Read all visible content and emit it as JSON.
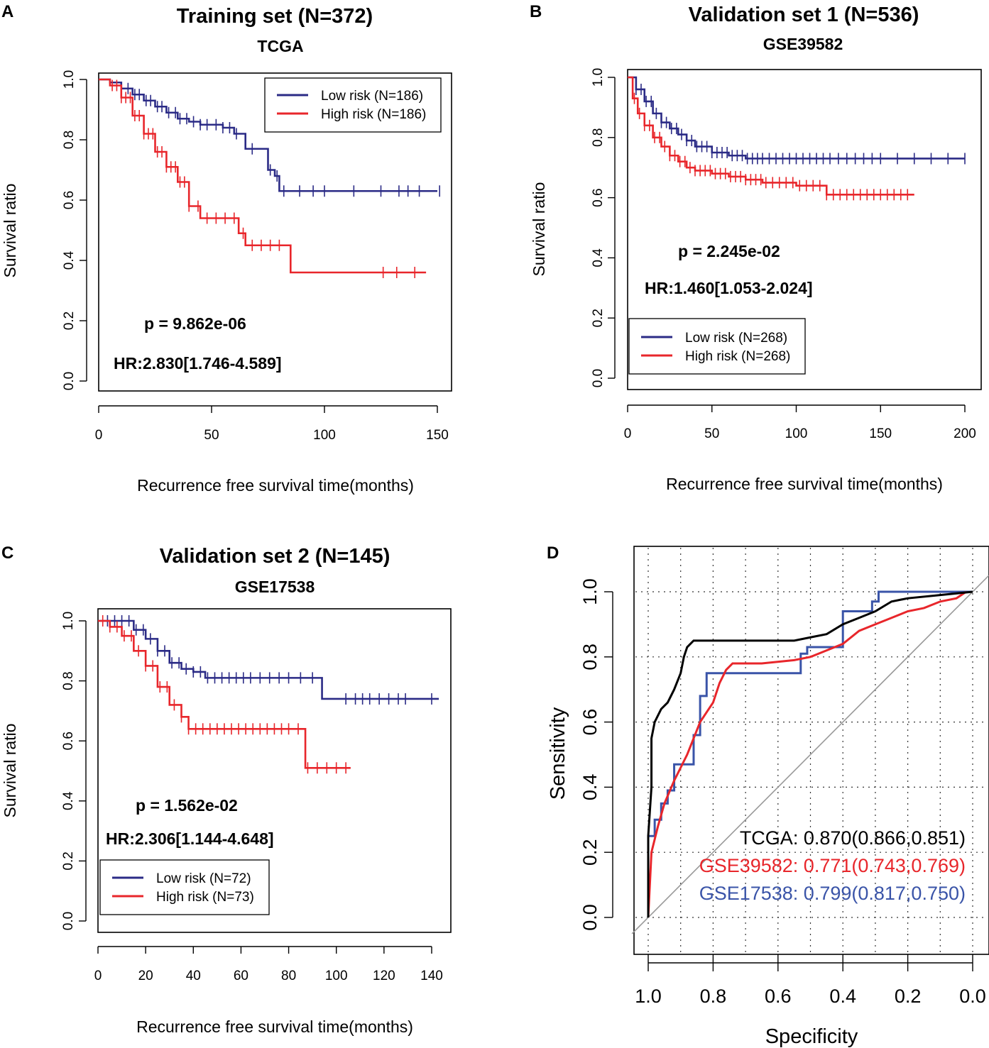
{
  "panels": [
    {
      "letter": "A",
      "type": "survival",
      "title": "Training set  (N=372)",
      "subtitle": "TCGA",
      "xlabel": "Recurrence free survival time(months)",
      "ylabel": "Survival ratio",
      "xlim": [
        0,
        155
      ],
      "ylim": [
        0,
        1.0
      ],
      "xticks": [
        0,
        50,
        100,
        150
      ],
      "yticks": [
        0.0,
        0.2,
        0.4,
        0.6,
        0.8,
        1.0
      ],
      "ytick_labels": [
        "0.0",
        "0.2",
        "0.4",
        "0.6",
        "0.8",
        "1.0"
      ],
      "p_value": "p = 9.862e-06",
      "hr": "HR:2.830[1.746-4.589]",
      "legend_position": "top-right",
      "series": [
        {
          "name": "Low risk (N=186)",
          "color": "#2b2b86",
          "points": [
            [
              0,
              1.0
            ],
            [
              5,
              0.99
            ],
            [
              10,
              0.97
            ],
            [
              15,
              0.95
            ],
            [
              20,
              0.93
            ],
            [
              25,
              0.91
            ],
            [
              30,
              0.89
            ],
            [
              35,
              0.87
            ],
            [
              40,
              0.86
            ],
            [
              45,
              0.85
            ],
            [
              50,
              0.85
            ],
            [
              55,
              0.84
            ],
            [
              60,
              0.82
            ],
            [
              65,
              0.77
            ],
            [
              70,
              0.77
            ],
            [
              75,
              0.7
            ],
            [
              78,
              0.68
            ],
            [
              80,
              0.63
            ],
            [
              150,
              0.63
            ]
          ],
          "censors": [
            10,
            13,
            16,
            18,
            21,
            23,
            26,
            28,
            31,
            34,
            36,
            39,
            42,
            45,
            48,
            52,
            55,
            58,
            61,
            68,
            76,
            79,
            82,
            89,
            95,
            100,
            113,
            125,
            133,
            137,
            142,
            151
          ]
        },
        {
          "name": "High risk (N=186)",
          "color": "#e8262b",
          "points": [
            [
              0,
              1.0
            ],
            [
              5,
              0.98
            ],
            [
              10,
              0.94
            ],
            [
              15,
              0.88
            ],
            [
              20,
              0.82
            ],
            [
              25,
              0.76
            ],
            [
              30,
              0.71
            ],
            [
              35,
              0.66
            ],
            [
              40,
              0.58
            ],
            [
              45,
              0.54
            ],
            [
              50,
              0.54
            ],
            [
              60,
              0.54
            ],
            [
              62,
              0.49
            ],
            [
              65,
              0.45
            ],
            [
              75,
              0.45
            ],
            [
              84,
              0.45
            ],
            [
              85,
              0.36
            ],
            [
              145,
              0.36
            ]
          ],
          "censors": [
            6,
            8,
            10,
            12,
            14,
            16,
            18,
            20,
            22,
            24,
            26,
            28,
            30,
            32,
            34,
            36,
            38,
            40,
            44,
            48,
            52,
            56,
            60,
            64,
            68,
            72,
            76,
            80,
            126,
            132,
            140
          ]
        }
      ]
    },
    {
      "letter": "B",
      "type": "survival",
      "title": "Validation set 1  (N=536)",
      "subtitle": "GSE39582",
      "xlabel": "Recurrence free survival time(months)",
      "ylabel": "Survival ratio",
      "xlim": [
        0,
        205
      ],
      "ylim": [
        0,
        1.0
      ],
      "xticks": [
        0,
        50,
        100,
        150,
        200
      ],
      "yticks": [
        0.0,
        0.2,
        0.4,
        0.6,
        0.8,
        1.0
      ],
      "ytick_labels": [
        "0.0",
        "0.2",
        "0.4",
        "0.6",
        "0.8",
        "1.0"
      ],
      "p_value": "p = 2.245e-02",
      "hr": "HR:1.460[1.053-2.024]",
      "legend_position": "bottom-left",
      "series": [
        {
          "name": "Low risk (N=268)",
          "color": "#2b2b86",
          "points": [
            [
              0,
              1.0
            ],
            [
              5,
              0.96
            ],
            [
              10,
              0.92
            ],
            [
              15,
              0.88
            ],
            [
              20,
              0.85
            ],
            [
              25,
              0.83
            ],
            [
              30,
              0.81
            ],
            [
              35,
              0.79
            ],
            [
              40,
              0.77
            ],
            [
              50,
              0.75
            ],
            [
              60,
              0.74
            ],
            [
              70,
              0.73
            ],
            [
              200,
              0.73
            ]
          ],
          "censors": [
            5,
            8,
            11,
            14,
            17,
            20,
            23,
            26,
            29,
            32,
            35,
            38,
            41,
            44,
            47,
            50,
            53,
            56,
            59,
            62,
            65,
            68,
            71,
            74,
            77,
            80,
            84,
            88,
            92,
            96,
            100,
            104,
            108,
            112,
            116,
            120,
            125,
            130,
            135,
            140,
            145,
            150,
            160,
            170,
            180,
            190,
            200
          ]
        },
        {
          "name": "High risk (N=268)",
          "color": "#e8262b",
          "points": [
            [
              0,
              1.0
            ],
            [
              3,
              0.93
            ],
            [
              6,
              0.88
            ],
            [
              10,
              0.84
            ],
            [
              15,
              0.8
            ],
            [
              20,
              0.77
            ],
            [
              25,
              0.74
            ],
            [
              30,
              0.72
            ],
            [
              35,
              0.7
            ],
            [
              40,
              0.69
            ],
            [
              50,
              0.68
            ],
            [
              60,
              0.67
            ],
            [
              70,
              0.66
            ],
            [
              80,
              0.65
            ],
            [
              100,
              0.64
            ],
            [
              110,
              0.64
            ],
            [
              118,
              0.61
            ],
            [
              170,
              0.61
            ]
          ],
          "censors": [
            4,
            7,
            10,
            13,
            16,
            19,
            22,
            25,
            28,
            31,
            34,
            37,
            40,
            43,
            46,
            49,
            52,
            55,
            58,
            61,
            64,
            67,
            70,
            73,
            76,
            79,
            82,
            86,
            90,
            94,
            98,
            102,
            106,
            110,
            114,
            118,
            122,
            126,
            130,
            134,
            138,
            142,
            146,
            150,
            154,
            158,
            162,
            166
          ]
        }
      ]
    },
    {
      "letter": "C",
      "type": "survival",
      "title": "Validation set 2  (N=145)",
      "subtitle": "GSE17538",
      "xlabel": "Recurrence free survival time(months)",
      "ylabel": "Survival ratio",
      "xlim": [
        0,
        148
      ],
      "ylim": [
        0,
        1.0
      ],
      "xticks": [
        0,
        20,
        40,
        60,
        80,
        100,
        120,
        140
      ],
      "yticks": [
        0.0,
        0.2,
        0.4,
        0.6,
        0.8,
        1.0
      ],
      "ytick_labels": [
        "0.0",
        "0.2",
        "0.4",
        "0.6",
        "0.8",
        "1.0"
      ],
      "p_value": "p = 1.562e-02",
      "hr": "HR:2.306[1.144-4.648]",
      "legend_position": "bottom-left",
      "series": [
        {
          "name": "Low risk (N=72)",
          "color": "#2b2b86",
          "points": [
            [
              0,
              1.0
            ],
            [
              10,
              1.0
            ],
            [
              15,
              0.97
            ],
            [
              20,
              0.94
            ],
            [
              25,
              0.9
            ],
            [
              30,
              0.86
            ],
            [
              35,
              0.84
            ],
            [
              40,
              0.83
            ],
            [
              45,
              0.81
            ],
            [
              92,
              0.81
            ],
            [
              94,
              0.74
            ],
            [
              143,
              0.74
            ]
          ],
          "censors": [
            4,
            7,
            10,
            13,
            16,
            19,
            22,
            25,
            28,
            31,
            34,
            37,
            40,
            43,
            46,
            49,
            52,
            55,
            58,
            61,
            64,
            68,
            72,
            76,
            80,
            85,
            90,
            104,
            108,
            111,
            114,
            118,
            122,
            126,
            129,
            140
          ]
        },
        {
          "name": "High risk (N=73)",
          "color": "#e8262b",
          "points": [
            [
              0,
              1.0
            ],
            [
              5,
              0.98
            ],
            [
              10,
              0.95
            ],
            [
              15,
              0.9
            ],
            [
              20,
              0.85
            ],
            [
              25,
              0.78
            ],
            [
              30,
              0.72
            ],
            [
              35,
              0.68
            ],
            [
              38,
              0.64
            ],
            [
              86,
              0.64
            ],
            [
              87,
              0.51
            ],
            [
              106,
              0.51
            ]
          ],
          "censors": [
            2,
            5,
            8,
            11,
            14,
            17,
            20,
            23,
            26,
            29,
            32,
            35,
            38,
            41,
            44,
            47,
            50,
            53,
            56,
            59,
            62,
            65,
            68,
            71,
            74,
            77,
            80,
            84,
            88,
            92,
            96,
            100,
            104
          ]
        }
      ]
    },
    {
      "letter": "D",
      "type": "roc",
      "xlabel": "Specificity",
      "ylabel": "Sensitivity",
      "xlim": [
        1.0,
        0.0
      ],
      "ylim": [
        0.0,
        1.0
      ],
      "xticks": [
        1.0,
        0.8,
        0.6,
        0.4,
        0.2,
        0.0
      ],
      "xtick_labels": [
        "1.0",
        "0.8",
        "0.6",
        "0.4",
        "0.2",
        "0.0"
      ],
      "yticks": [
        0.0,
        0.2,
        0.4,
        0.6,
        0.8,
        1.0
      ],
      "ytick_labels": [
        "0.0",
        "0.2",
        "0.4",
        "0.6",
        "0.8",
        "1.0"
      ],
      "grid": true,
      "series": [
        {
          "name": "TCGA",
          "auc_label": "TCGA: 0.870(0.866,0.851)",
          "color": "#000000",
          "points": [
            [
              1.0,
              0.0
            ],
            [
              1.0,
              0.25
            ],
            [
              0.99,
              0.4
            ],
            [
              0.99,
              0.55
            ],
            [
              0.98,
              0.6
            ],
            [
              0.96,
              0.64
            ],
            [
              0.94,
              0.66
            ],
            [
              0.92,
              0.7
            ],
            [
              0.9,
              0.75
            ],
            [
              0.89,
              0.8
            ],
            [
              0.88,
              0.83
            ],
            [
              0.86,
              0.85
            ],
            [
              0.55,
              0.85
            ],
            [
              0.5,
              0.86
            ],
            [
              0.45,
              0.87
            ],
            [
              0.4,
              0.9
            ],
            [
              0.35,
              0.92
            ],
            [
              0.3,
              0.94
            ],
            [
              0.25,
              0.97
            ],
            [
              0.2,
              0.98
            ],
            [
              0.1,
              0.99
            ],
            [
              0.0,
              1.0
            ]
          ]
        },
        {
          "name": "GSE39582",
          "auc_label": "GSE39582: 0.771(0.743,0.769)",
          "color": "#e8262b",
          "points": [
            [
              1.0,
              0.0
            ],
            [
              0.99,
              0.2
            ],
            [
              0.97,
              0.28
            ],
            [
              0.95,
              0.35
            ],
            [
              0.92,
              0.42
            ],
            [
              0.9,
              0.46
            ],
            [
              0.88,
              0.5
            ],
            [
              0.86,
              0.55
            ],
            [
              0.84,
              0.6
            ],
            [
              0.82,
              0.63
            ],
            [
              0.8,
              0.66
            ],
            [
              0.78,
              0.72
            ],
            [
              0.76,
              0.76
            ],
            [
              0.74,
              0.78
            ],
            [
              0.65,
              0.78
            ],
            [
              0.55,
              0.79
            ],
            [
              0.5,
              0.8
            ],
            [
              0.45,
              0.82
            ],
            [
              0.4,
              0.84
            ],
            [
              0.35,
              0.88
            ],
            [
              0.3,
              0.9
            ],
            [
              0.25,
              0.92
            ],
            [
              0.2,
              0.94
            ],
            [
              0.15,
              0.95
            ],
            [
              0.1,
              0.97
            ],
            [
              0.05,
              0.98
            ],
            [
              0.02,
              1.0
            ]
          ]
        },
        {
          "name": "GSE17538",
          "auc_label": "GSE17538: 0.799(0.817,0.750)",
          "color": "#3a54a8",
          "points": [
            [
              1.0,
              0.0
            ],
            [
              1.0,
              0.25
            ],
            [
              0.98,
              0.25
            ],
            [
              0.98,
              0.3
            ],
            [
              0.96,
              0.3
            ],
            [
              0.96,
              0.35
            ],
            [
              0.94,
              0.35
            ],
            [
              0.94,
              0.39
            ],
            [
              0.92,
              0.39
            ],
            [
              0.92,
              0.47
            ],
            [
              0.86,
              0.47
            ],
            [
              0.86,
              0.56
            ],
            [
              0.84,
              0.56
            ],
            [
              0.84,
              0.68
            ],
            [
              0.82,
              0.68
            ],
            [
              0.82,
              0.75
            ],
            [
              0.53,
              0.75
            ],
            [
              0.53,
              0.81
            ],
            [
              0.51,
              0.81
            ],
            [
              0.51,
              0.83
            ],
            [
              0.4,
              0.83
            ],
            [
              0.4,
              0.94
            ],
            [
              0.31,
              0.94
            ],
            [
              0.31,
              0.97
            ],
            [
              0.29,
              0.97
            ],
            [
              0.29,
              1.0
            ],
            [
              0.0,
              1.0
            ]
          ]
        }
      ]
    }
  ]
}
